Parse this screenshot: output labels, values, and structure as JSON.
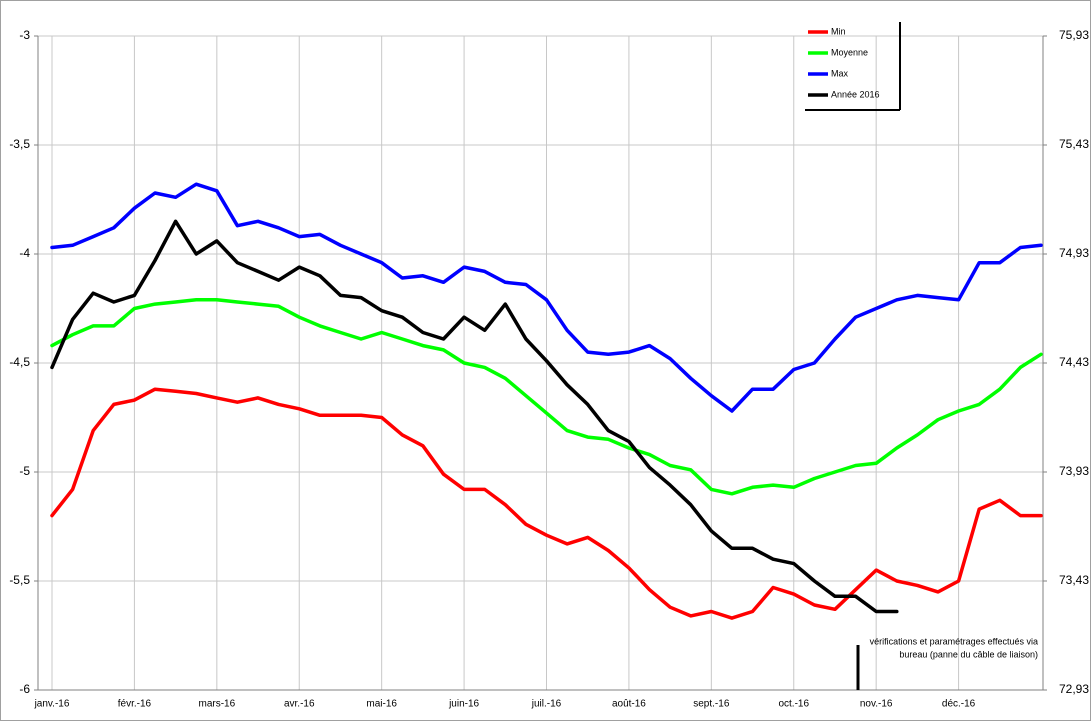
{
  "chart_data": {
    "type": "line",
    "categories": [
      "janv.-16",
      null,
      null,
      null,
      "févr.-16",
      null,
      null,
      null,
      "mars-16",
      null,
      null,
      null,
      "avr.-16",
      null,
      null,
      null,
      "mai-16",
      null,
      null,
      null,
      "juin-16",
      null,
      null,
      null,
      "juil.-16",
      null,
      null,
      null,
      "août-16",
      null,
      null,
      null,
      "sept.-16",
      null,
      null,
      null,
      "oct.-16",
      null,
      null,
      null,
      "nov.-16",
      null,
      null,
      null,
      "déc.-16",
      null,
      null,
      null,
      null
    ],
    "series": [
      {
        "name": "Min",
        "color": "#ff0000",
        "values": [
          -5.2,
          -5.08,
          -4.81,
          -4.69,
          -4.67,
          -4.62,
          -4.63,
          -4.64,
          -4.66,
          -4.68,
          -4.66,
          -4.69,
          -4.71,
          -4.74,
          -4.74,
          -4.74,
          -4.75,
          -4.83,
          -4.88,
          -5.01,
          -5.08,
          -5.08,
          -5.15,
          -5.24,
          -5.29,
          -5.33,
          -5.3,
          -5.36,
          -5.44,
          -5.54,
          -5.62,
          -5.66,
          -5.64,
          -5.67,
          -5.64,
          -5.53,
          -5.56,
          -5.61,
          -5.63,
          -5.54,
          -5.45,
          -5.5,
          -5.52,
          -5.55,
          -5.5,
          -5.17,
          -5.13,
          -5.2,
          -5.2
        ]
      },
      {
        "name": "Moyenne",
        "color": "#00ff00",
        "values": [
          -4.42,
          -4.37,
          -4.33,
          -4.33,
          -4.25,
          -4.23,
          -4.22,
          -4.21,
          -4.21,
          -4.22,
          -4.23,
          -4.24,
          -4.29,
          -4.33,
          -4.36,
          -4.39,
          -4.36,
          -4.39,
          -4.42,
          -4.44,
          -4.5,
          -4.52,
          -4.57,
          -4.65,
          -4.73,
          -4.81,
          -4.84,
          -4.85,
          -4.89,
          -4.92,
          -4.97,
          -4.99,
          -5.08,
          -5.1,
          -5.07,
          -5.06,
          -5.07,
          -5.03,
          -5.0,
          -4.97,
          -4.96,
          -4.89,
          -4.83,
          -4.76,
          -4.72,
          -4.69,
          -4.62,
          -4.52,
          -4.46
        ]
      },
      {
        "name": "Max",
        "color": "#0000ff",
        "values": [
          -3.97,
          -3.96,
          -3.92,
          -3.88,
          -3.79,
          -3.72,
          -3.74,
          -3.68,
          -3.71,
          -3.87,
          -3.85,
          -3.88,
          -3.92,
          -3.91,
          -3.96,
          -4.0,
          -4.04,
          -4.11,
          -4.1,
          -4.13,
          -4.06,
          -4.08,
          -4.13,
          -4.14,
          -4.21,
          -4.35,
          -4.45,
          -4.46,
          -4.45,
          -4.42,
          -4.48,
          -4.57,
          -4.65,
          -4.72,
          -4.62,
          -4.62,
          -4.53,
          -4.5,
          -4.39,
          -4.29,
          -4.25,
          -4.21,
          -4.19,
          -4.2,
          -4.21,
          -4.04,
          -4.04,
          -3.97,
          -3.96
        ]
      },
      {
        "name": "Année 2016",
        "color": "#000000",
        "values": [
          -4.52,
          -4.3,
          -4.18,
          -4.22,
          -4.19,
          -4.03,
          -3.85,
          -4.0,
          -3.94,
          -4.04,
          -4.08,
          -4.12,
          -4.06,
          -4.1,
          -4.19,
          -4.2,
          -4.26,
          -4.29,
          -4.36,
          -4.39,
          -4.29,
          -4.35,
          -4.23,
          -4.39,
          -4.49,
          -4.6,
          -4.69,
          -4.81,
          -4.86,
          -4.98,
          -5.06,
          -5.15,
          -5.27,
          -5.35,
          -5.35,
          -5.4,
          -5.42,
          -5.5,
          -5.57,
          -5.57,
          -5.64,
          -5.64,
          null,
          null,
          null,
          null,
          null,
          null,
          null
        ]
      }
    ],
    "ylim": [
      -6,
      -3
    ],
    "yticks": [
      -6,
      {
        "value": -5.5,
        "label": "-5,5"
      },
      -5,
      {
        "value": -4.5,
        "label": "-4,5"
      },
      -4,
      {
        "value": -3.5,
        "label": "-3,5"
      },
      -3
    ],
    "y2lim": [
      72.93,
      75.93
    ],
    "y2ticks": [
      {
        "value": 72.93,
        "label": "72,93"
      },
      {
        "value": 73.43,
        "label": "73,43"
      },
      {
        "value": 73.93,
        "label": "73,93"
      },
      {
        "value": 74.43,
        "label": "74,43"
      },
      {
        "value": 74.93,
        "label": "74,93"
      },
      {
        "value": 75.43,
        "label": "75,43"
      },
      {
        "value": 75.93,
        "label": "75,93"
      }
    ],
    "grid": true,
    "legend": "top-right",
    "annotation": [
      "vérifications et paramétrages  effectués via",
      "bureau (panne du câble de liaison)"
    ]
  }
}
